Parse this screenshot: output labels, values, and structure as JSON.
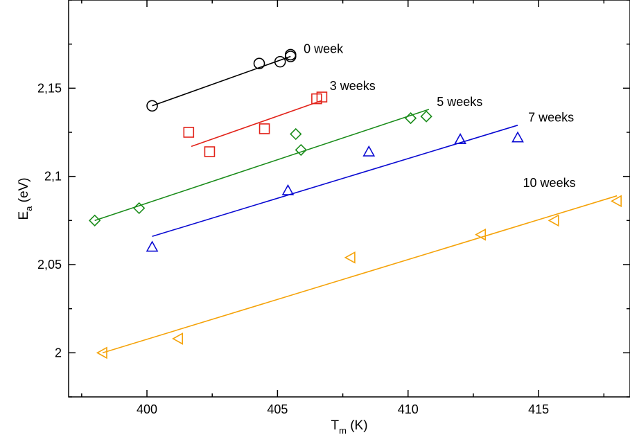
{
  "chart_data": {
    "type": "scatter",
    "title": "",
    "xlabel": {
      "main": "T",
      "sub": "m",
      "unit": " (K)"
    },
    "ylabel": {
      "main": "E",
      "sub": "a",
      "unit": " (eV)"
    },
    "xlim": [
      397,
      418.5
    ],
    "ylim": [
      1.975,
      2.2
    ],
    "grid": false,
    "legend": "none",
    "x_ticks": [
      {
        "value": 400,
        "label": "400"
      },
      {
        "value": 405,
        "label": "405"
      },
      {
        "value": 410,
        "label": "410"
      },
      {
        "value": 415,
        "label": "415"
      }
    ],
    "y_ticks": [
      {
        "value": 2.0,
        "label": "2"
      },
      {
        "value": 2.05,
        "label": "2,05"
      },
      {
        "value": 2.1,
        "label": "2,1"
      },
      {
        "value": 2.15,
        "label": "2,15"
      }
    ],
    "series": [
      {
        "name": "0 week",
        "color": "#000000",
        "marker": "circle",
        "points": [
          [
            400.2,
            2.14
          ],
          [
            404.3,
            2.164
          ],
          [
            405.1,
            2.165
          ],
          [
            405.5,
            2.168
          ],
          [
            405.5,
            2.169
          ]
        ],
        "fit": [
          [
            400.2,
            2.14
          ],
          [
            405.5,
            2.168
          ]
        ],
        "label_at": [
          406.0,
          2.17
        ]
      },
      {
        "name": "3 weeks",
        "color": "#e2231a",
        "marker": "square",
        "points": [
          [
            401.6,
            2.125
          ],
          [
            402.4,
            2.114
          ],
          [
            404.5,
            2.127
          ],
          [
            406.5,
            2.144
          ],
          [
            406.7,
            2.145
          ]
        ],
        "fit": [
          [
            401.7,
            2.117
          ],
          [
            406.7,
            2.143
          ]
        ],
        "label_at": [
          407.0,
          2.149
        ]
      },
      {
        "name": "5 weeks",
        "color": "#1a8c1a",
        "marker": "diamond",
        "points": [
          [
            398.0,
            2.075
          ],
          [
            399.7,
            2.082
          ],
          [
            405.7,
            2.124
          ],
          [
            405.9,
            2.115
          ],
          [
            410.1,
            2.133
          ],
          [
            410.7,
            2.134
          ]
        ],
        "fit": [
          [
            398.0,
            2.075
          ],
          [
            410.8,
            2.138
          ]
        ],
        "label_at": [
          411.1,
          2.14
        ]
      },
      {
        "name": "7 weeks",
        "color": "#0a0ad2",
        "marker": "triangle-up",
        "points": [
          [
            400.2,
            2.06
          ],
          [
            405.4,
            2.092
          ],
          [
            408.5,
            2.114
          ],
          [
            412.0,
            2.121
          ],
          [
            414.2,
            2.122
          ]
        ],
        "fit": [
          [
            400.2,
            2.066
          ],
          [
            414.2,
            2.129
          ]
        ],
        "label_at": [
          414.6,
          2.131
        ]
      },
      {
        "name": "10 weeks",
        "color": "#f5a30a",
        "marker": "triangle-left",
        "points": [
          [
            398.3,
            2.0
          ],
          [
            401.2,
            2.008
          ],
          [
            407.8,
            2.054
          ],
          [
            412.8,
            2.067
          ],
          [
            415.6,
            2.075
          ],
          [
            418.0,
            2.086
          ]
        ],
        "fit": [
          [
            398.3,
            2.0
          ],
          [
            418.0,
            2.089
          ]
        ],
        "label_at": [
          414.4,
          2.094
        ]
      }
    ]
  }
}
